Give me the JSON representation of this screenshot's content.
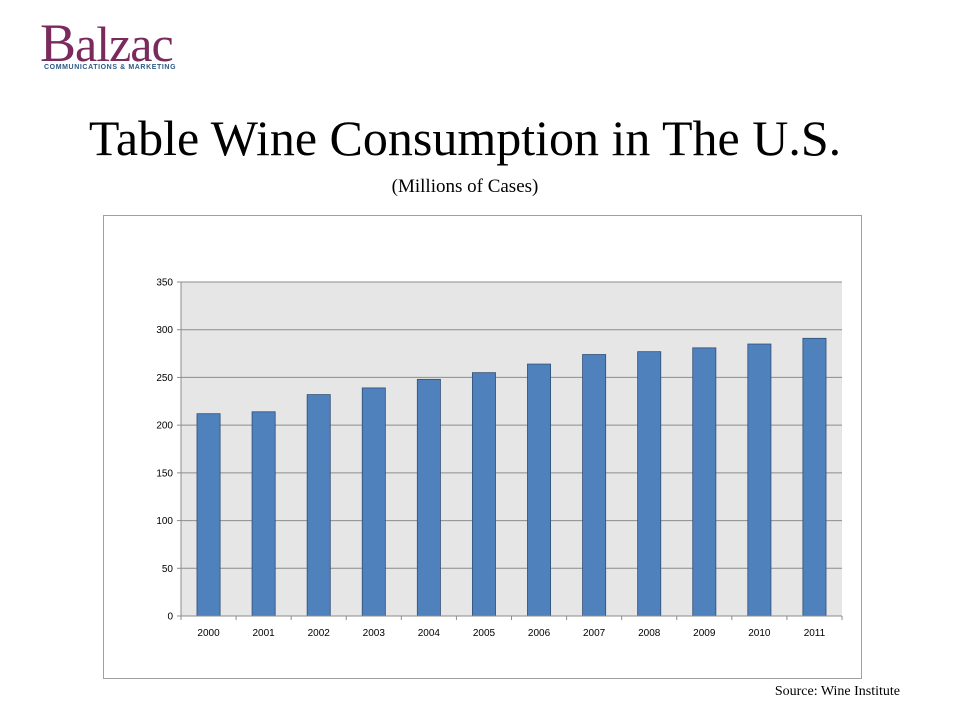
{
  "logo": {
    "initial": "B",
    "rest": "alzac",
    "tagline": "COMMUNICATIONS & MARKETING",
    "initial_color": "#7a2a5c",
    "tagline_color": "#2c5a86"
  },
  "slide": {
    "title": "Table Wine Consumption in The U.S.",
    "subtitle": "(Millions of Cases)",
    "source": "Source: Wine Institute"
  },
  "chart_data": {
    "type": "bar",
    "title": "",
    "xlabel": "",
    "ylabel": "",
    "categories": [
      "2000",
      "2001",
      "2002",
      "2003",
      "2004",
      "2005",
      "2006",
      "2007",
      "2008",
      "2009",
      "2010",
      "2011"
    ],
    "values": [
      212,
      214,
      232,
      239,
      248,
      255,
      264,
      274,
      277,
      281,
      285,
      291
    ],
    "ylim": [
      0,
      350
    ],
    "yticks": [
      0,
      50,
      100,
      150,
      200,
      250,
      300,
      350
    ],
    "grid": true,
    "legend": "none",
    "bar_color": "#4f81bd",
    "plot_background": "#e6e6e6"
  }
}
